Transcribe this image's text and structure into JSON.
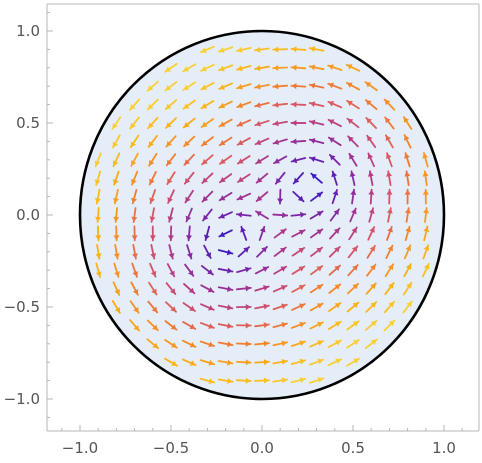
{
  "chart_data": {
    "type": "vector-field",
    "title": "",
    "xlabel": "",
    "ylabel": "",
    "xlim": [
      -1.15,
      1.15
    ],
    "ylim": [
      -1.15,
      1.15
    ],
    "x_ticks": [
      "-1.0",
      "-0.5",
      "0.0",
      "0.5",
      "1.0"
    ],
    "y_ticks": [
      "1.0",
      "0.5",
      "0.0",
      "-0.5",
      "-1.0"
    ],
    "x_tick_values": [
      -1.0,
      -0.5,
      0.0,
      0.5,
      1.0
    ],
    "y_tick_values": [
      1.0,
      0.5,
      0.0,
      -0.5,
      -1.0
    ],
    "grid": false,
    "region": {
      "shape": "disk",
      "center": [
        0,
        0
      ],
      "radius": 1.0
    },
    "field": {
      "description": "Unit-disk vector field with two interior vortices near (0.28,0.17) and (-0.2,-0.15); arrows colored by magnitude (blue = slow, purple = mid, orange/yellow = fast).",
      "grid_spacing": 0.1,
      "vortices": [
        {
          "center": [
            0.28,
            0.17
          ],
          "strength": 1.0
        },
        {
          "center": [
            -0.2,
            -0.15
          ],
          "strength": 1.0
        }
      ]
    },
    "colors": {
      "disk_fill": "#e5edf8",
      "disk_stroke": "#000000",
      "colormap": [
        "#2b18c9",
        "#6a1fb0",
        "#a4348f",
        "#d65368",
        "#f4822a",
        "#fbb115",
        "#f9d033"
      ]
    }
  }
}
